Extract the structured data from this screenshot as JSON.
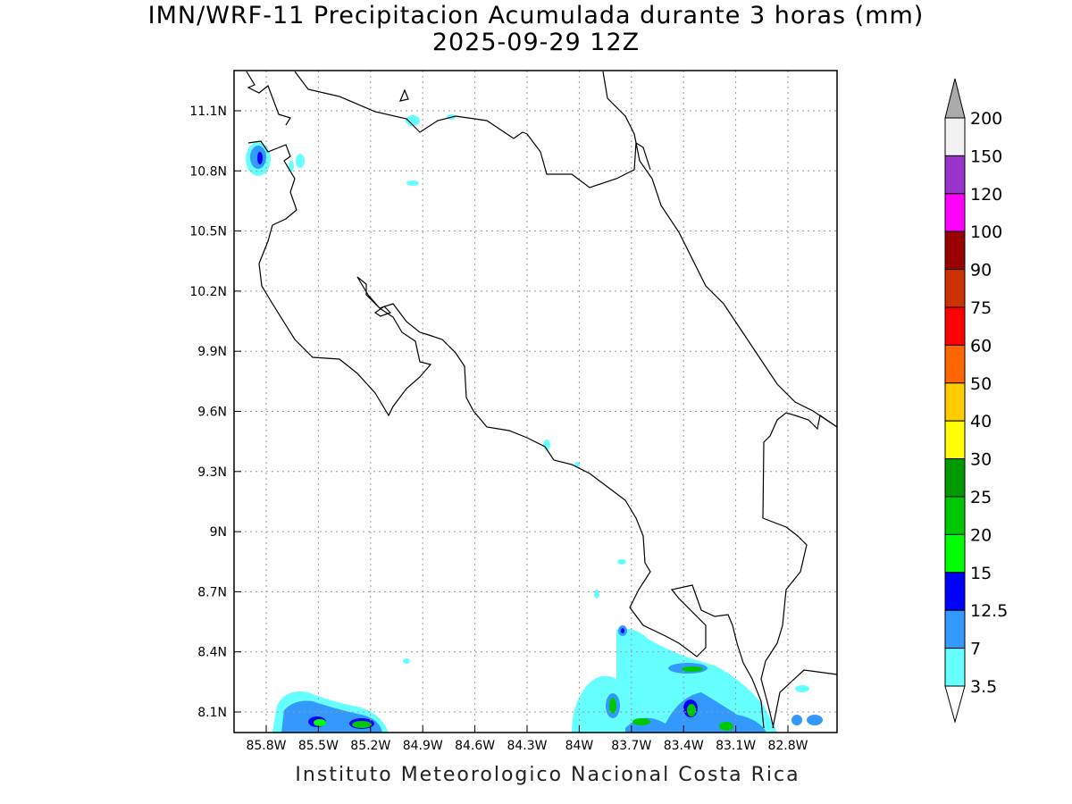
{
  "title": {
    "line1": "IMN/WRF-11 Precipitacion Acumulada durante 3 horas (mm)",
    "line2": "2025-09-29 12Z"
  },
  "footer": "Instituto Meteorologico Nacional Costa Rica",
  "map": {
    "lat_ticks": [
      "11.1N",
      "10.8N",
      "10.5N",
      "10.2N",
      "9.9N",
      "9.6N",
      "9.3N",
      "9N",
      "8.7N",
      "8.4N",
      "8.1N"
    ],
    "lon_ticks": [
      "85.8W",
      "85.5W",
      "85.2W",
      "84.9W",
      "84.6W",
      "84.3W",
      "84W",
      "83.7W",
      "83.4W",
      "83.1W",
      "82.8W"
    ]
  },
  "colorbar": {
    "labels": [
      "200",
      "150",
      "120",
      "100",
      "90",
      "75",
      "60",
      "50",
      "40",
      "30",
      "25",
      "20",
      "15",
      "12.5",
      "7",
      "3.5"
    ],
    "colors": [
      "#f2f2f2",
      "#9933cc",
      "#ff00ff",
      "#990000",
      "#cc3300",
      "#ff0000",
      "#ff6600",
      "#ffcc00",
      "#ffff00",
      "#009900",
      "#00c800",
      "#00ff00",
      "#0000ff",
      "#3399ff",
      "#66ffff"
    ],
    "over_color": "#aaaaaa",
    "under_color": "#ffffff"
  }
}
